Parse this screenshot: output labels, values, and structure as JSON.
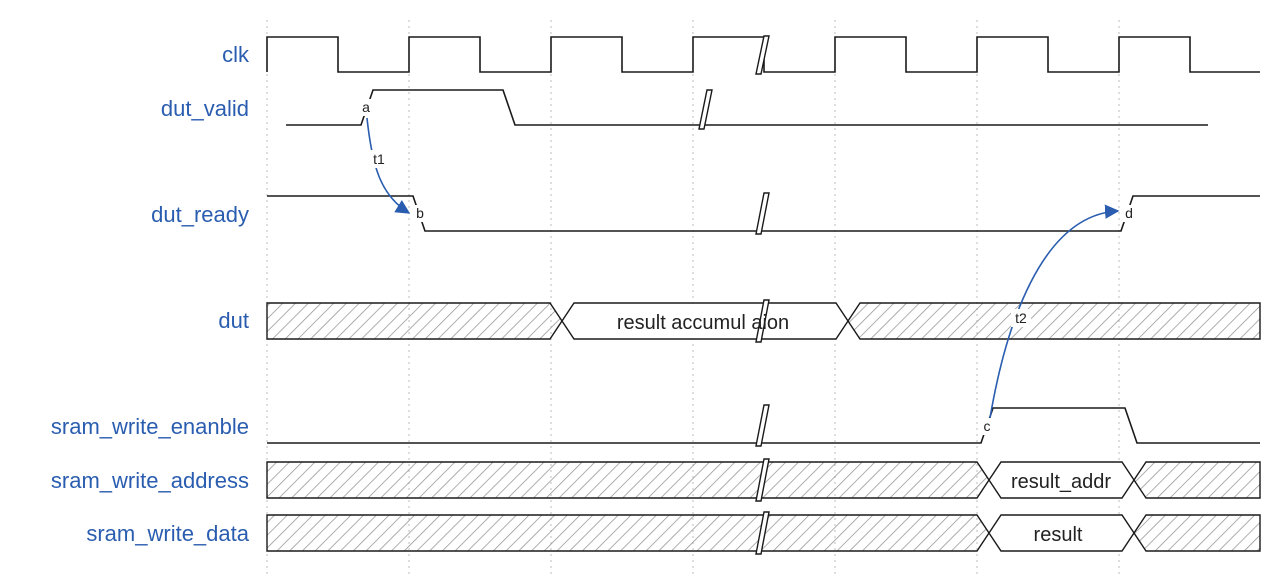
{
  "signals": {
    "clk": "clk",
    "dut_valid": "dut_valid",
    "dut_ready": "dut_ready",
    "dut": "dut",
    "sram_write_enable": "sram_write_enanble",
    "sram_write_address": "sram_write_address",
    "sram_write_data": "sram_write_data"
  },
  "bus_values": {
    "dut": "result accumul aion",
    "sram_write_address": "result_addr",
    "sram_write_data": "result"
  },
  "markers": {
    "a": "a",
    "b": "b",
    "c": "c",
    "d": "d",
    "t1": "t1",
    "t2": "t2"
  },
  "colors": {
    "label": "#2a5db0",
    "arrow": "#2a5db0",
    "wave": "#1a1a1a",
    "hatch": "#8c8c8c"
  }
}
